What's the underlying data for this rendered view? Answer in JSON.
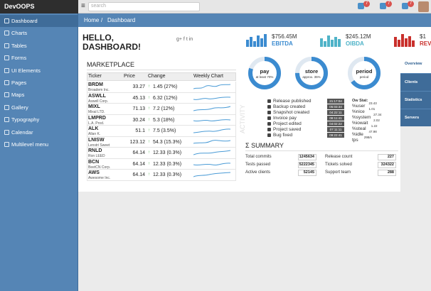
{
  "header": {
    "logo": "DevOOPS",
    "search_placeholder": "search",
    "badges": [
      "7",
      "7",
      "7"
    ]
  },
  "sidebar": {
    "items": [
      "Dashboard",
      "Charts",
      "Tables",
      "Forms",
      "UI Elements",
      "Pages",
      "Maps",
      "Gallery",
      "Typography",
      "Calendar",
      "Multilevel menu"
    ]
  },
  "breadcrumb": [
    "Home",
    "Dashboard"
  ],
  "page": {
    "title_line1": "HELLO,",
    "title_line2": "DASHBOARD!",
    "social": "g+ f t in"
  },
  "stats": [
    {
      "value": "$756.45M",
      "label": "EBITDA",
      "color": "#3b8bd0"
    },
    {
      "value": "$245.12M",
      "label": "OIBDA",
      "color": "#4fb3c8"
    },
    {
      "value": "$1",
      "label": "REVE",
      "color": "#c9302c"
    }
  ],
  "marketplace": {
    "title": "MARKETPLACE",
    "columns": [
      "Ticker",
      "Price",
      "Change",
      "Weekly Chart"
    ],
    "rows": [
      {
        "ticker": "BRDM",
        "company": "Broadem Inc.",
        "price": 33.27,
        "change": "1.45 (27%)"
      },
      {
        "ticker": "ASWLL",
        "company": "Aswell Corp.",
        "price": 45.13,
        "change": "6.32 (12%)"
      },
      {
        "ticker": "MIXL",
        "company": "Mixal LTD.",
        "price": 71.13,
        "change": "7.2 (12%)"
      },
      {
        "ticker": "LMPRD",
        "company": "L.A. Prod.",
        "price": 30.24,
        "change": "5.3 (18%)"
      },
      {
        "ticker": "ALK",
        "company": "Allan K.",
        "price": 51.1,
        "change": "7.5 (3.5%)"
      },
      {
        "ticker": "LNISW",
        "company": "Lenstri Sweet",
        "price": 123.12,
        "change": "54.3 (15.3%)"
      },
      {
        "ticker": "RNLD",
        "company": "Ron LEED",
        "price": 64.14,
        "change": "12.33 (0.3%)"
      },
      {
        "ticker": "BCN",
        "company": "BeetCN Corp.",
        "price": 64.14,
        "change": "12.33 (0.3%)"
      },
      {
        "ticker": "AWS",
        "company": "Awesome Inc.",
        "price": 64.14,
        "change": "12.33 (0.3%)"
      }
    ]
  },
  "donuts": [
    {
      "title": "pay",
      "subtitle": "at least 70%"
    },
    {
      "title": "store",
      "subtitle": "approx. 35%"
    },
    {
      "title": "period",
      "subtitle": "period"
    }
  ],
  "activity": {
    "label": "ACTIVITY",
    "items": [
      {
        "text": "Release published",
        "time": "21:17:04"
      },
      {
        "text": "Backup created",
        "time": "05:03:34"
      },
      {
        "text": "Snapshot created",
        "time": "04:22:11"
      },
      {
        "text": "Invoice pay",
        "time": "08:11:41"
      },
      {
        "text": "Project edited",
        "time": "04:02:22"
      },
      {
        "text": "Project saved",
        "time": "07:11:11"
      },
      {
        "text": "Bug fixed",
        "time": "09:22:41"
      }
    ]
  },
  "server_stats": {
    "title": "Ow Stat:",
    "items": [
      {
        "name": "%user",
        "value": "23.43"
      },
      {
        "name": "%nice",
        "value": "1.01"
      },
      {
        "name": "%system",
        "value": "27.34"
      },
      {
        "name": "%iowait",
        "value": "2.02"
      },
      {
        "name": "%steal",
        "value": "1.22"
      },
      {
        "name": "%idle",
        "value": "47.98"
      },
      {
        "name": "tps",
        "value": "298/s"
      }
    ]
  },
  "summary": {
    "title": "Σ SUMMARY",
    "items": [
      {
        "label": "Total commits",
        "value": 1245634
      },
      {
        "label": "Release count",
        "value": 227
      },
      {
        "label": "Tests passed",
        "value": 5222345
      },
      {
        "label": "Tickets solved",
        "value": 324322
      },
      {
        "label": "Active clients",
        "value": 52145
      },
      {
        "label": "Support team",
        "value": 288
      }
    ]
  },
  "tabs": [
    "Overview",
    "Clients",
    "Statistics",
    "Servers"
  ]
}
